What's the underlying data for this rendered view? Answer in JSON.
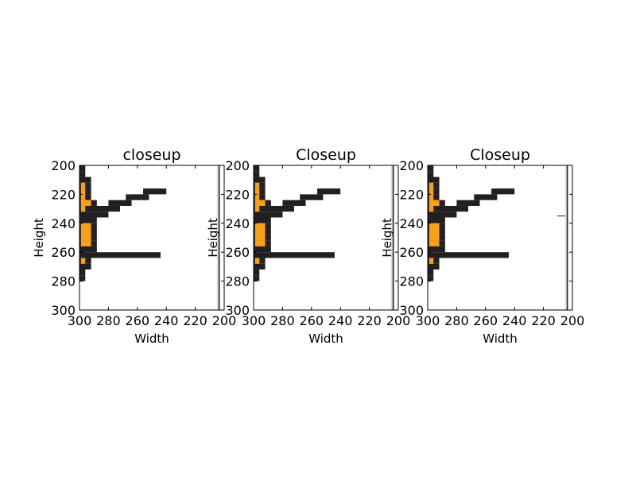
{
  "colors": {
    "background": "#ffffff",
    "dark": "#231f20",
    "orange": "#f7a11b",
    "frame": "#000000"
  },
  "chart_data": [
    {
      "type": "heatmap",
      "title": "closeup",
      "xlabel": "Width",
      "ylabel": "Height",
      "xlim": [
        300,
        200
      ],
      "ylim": [
        300,
        200
      ],
      "xticks": [
        300,
        280,
        260,
        240,
        220,
        200
      ],
      "yticks": [
        200,
        220,
        240,
        260,
        280,
        300
      ],
      "grid": false,
      "legend": "none",
      "extra_marks": false
    },
    {
      "type": "heatmap",
      "title": "Closeup",
      "xlabel": "Width",
      "ylabel": "Height",
      "xlim": [
        300,
        200
      ],
      "ylim": [
        300,
        200
      ],
      "xticks": [
        300,
        280,
        260,
        240,
        220,
        200
      ],
      "yticks": [
        200,
        220,
        240,
        260,
        280,
        300
      ],
      "grid": false,
      "legend": "none",
      "extra_marks": false
    },
    {
      "type": "heatmap",
      "title": "Closeup",
      "xlabel": "Width",
      "ylabel": "Height",
      "xlim": [
        300,
        200
      ],
      "ylim": [
        300,
        200
      ],
      "xticks": [
        300,
        280,
        260,
        240,
        220,
        200
      ],
      "yticks": [
        200,
        220,
        240,
        260,
        280,
        300
      ],
      "grid": false,
      "legend": "none",
      "extra_marks": true
    }
  ],
  "image": {
    "cell_size": 4,
    "dark_runs": [
      [
        200,
        300,
        296
      ],
      [
        204,
        300,
        296
      ],
      [
        208,
        300,
        292
      ],
      [
        212,
        300,
        292
      ],
      [
        216,
        300,
        292
      ],
      [
        216,
        256,
        240
      ],
      [
        220,
        300,
        292
      ],
      [
        220,
        268,
        252
      ],
      [
        224,
        300,
        288
      ],
      [
        224,
        280,
        264
      ],
      [
        228,
        300,
        272
      ],
      [
        232,
        300,
        280
      ],
      [
        236,
        300,
        288
      ],
      [
        240,
        300,
        288
      ],
      [
        244,
        300,
        288
      ],
      [
        248,
        300,
        288
      ],
      [
        252,
        300,
        288
      ],
      [
        256,
        300,
        288
      ],
      [
        260,
        300,
        244
      ],
      [
        264,
        300,
        292
      ],
      [
        268,
        300,
        292
      ],
      [
        272,
        300,
        296
      ],
      [
        276,
        300,
        296
      ]
    ],
    "orange_runs": [
      [
        212,
        299,
        296
      ],
      [
        216,
        299,
        296
      ],
      [
        220,
        299,
        296
      ],
      [
        224,
        299,
        292
      ],
      [
        228,
        299,
        296
      ],
      [
        240,
        299,
        292
      ],
      [
        244,
        299,
        292
      ],
      [
        248,
        299,
        292
      ],
      [
        252,
        299,
        292
      ],
      [
        264,
        299,
        296
      ]
    ],
    "edge_columns": [
      205,
      204,
      203
    ]
  }
}
